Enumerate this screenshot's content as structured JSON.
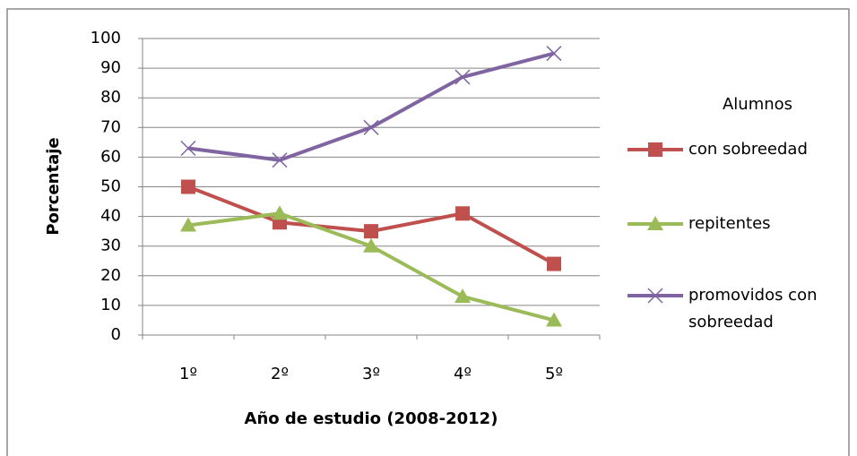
{
  "chart_data": {
    "type": "line",
    "x_label": "Año de estudio (2008-2012)",
    "y_label": "Porcentaje",
    "legend_title": "Alumnos",
    "categories": [
      "1º",
      "2º",
      "3º",
      "4º",
      "5º"
    ],
    "series": [
      {
        "name": "con sobreedad",
        "color": "#c0504d",
        "marker": "square",
        "values": [
          50,
          38,
          35,
          41,
          24
        ]
      },
      {
        "name": "repitentes",
        "color": "#9bbb59",
        "marker": "triangle",
        "values": [
          37,
          41,
          30,
          13,
          5
        ]
      },
      {
        "name": "promovidos con sobreedad",
        "color": "#8064a2",
        "marker": "x",
        "values": [
          63,
          59,
          70,
          87,
          95
        ]
      }
    ],
    "ylim": [
      0,
      100
    ],
    "yticks": [
      0,
      10,
      20,
      30,
      40,
      50,
      60,
      70,
      80,
      90,
      100
    ],
    "grid": true,
    "legend": "right"
  }
}
